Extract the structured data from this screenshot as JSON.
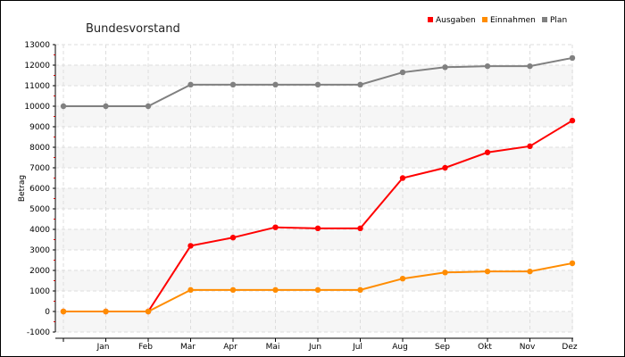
{
  "chart_data": {
    "type": "line",
    "title": "Bundesvorstand",
    "xlabel": "",
    "ylabel": "Betrag",
    "x": [
      "",
      "Jan",
      "Feb",
      "Mar",
      "Apr",
      "Mai",
      "Jun",
      "Jul",
      "Aug",
      "Sep",
      "Okt",
      "Nov",
      "Dez"
    ],
    "ylim": [
      -1000,
      13000
    ],
    "yticks": [
      -1000,
      0,
      1000,
      2000,
      3000,
      4000,
      5000,
      6000,
      7000,
      8000,
      9000,
      10000,
      11000,
      12000,
      13000
    ],
    "grid": true,
    "legend_position": "top-right",
    "series": [
      {
        "name": "Ausgaben",
        "color": "#ff0000",
        "values": [
          0,
          0,
          0,
          3200,
          3600,
          4100,
          4050,
          4050,
          6500,
          7000,
          7750,
          8050,
          9300
        ]
      },
      {
        "name": "Einnahmen",
        "color": "#ff8c00",
        "values": [
          0,
          0,
          0,
          1050,
          1050,
          1050,
          1050,
          1050,
          1600,
          1900,
          1950,
          1950,
          2350
        ]
      },
      {
        "name": "Plan",
        "color": "#808080",
        "values": [
          10000,
          10000,
          10000,
          11050,
          11050,
          11050,
          11050,
          11050,
          11650,
          11900,
          11950,
          11950,
          12350
        ]
      }
    ]
  }
}
